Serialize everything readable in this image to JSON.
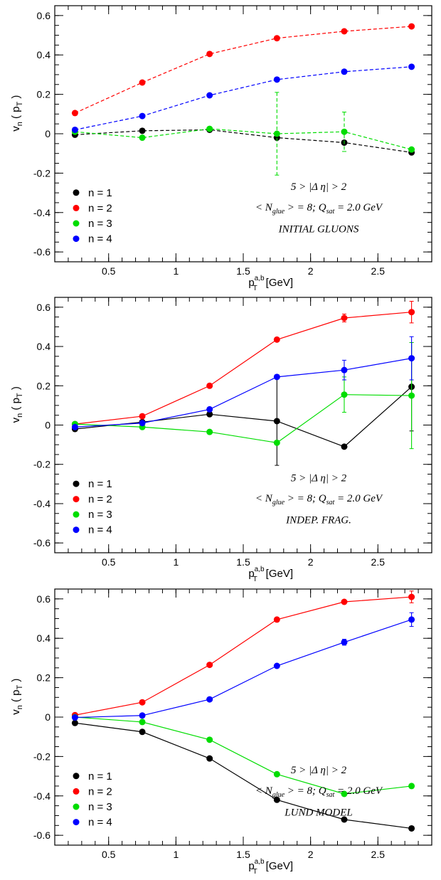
{
  "chart_data": [
    {
      "type": "line",
      "line_style": "dashed",
      "x": [
        0.25,
        0.75,
        1.25,
        1.75,
        2.25,
        2.75
      ],
      "xlim": [
        0.1,
        2.9
      ],
      "ylim": [
        -0.65,
        0.65
      ],
      "xticks": [
        "0.5",
        "1",
        "1.5",
        "2",
        "2.5"
      ],
      "yticks": [
        "-0.6",
        "-0.4",
        "-0.2",
        "0",
        "0.2",
        "0.4",
        "0.6"
      ],
      "xlabel": "p_T^{a,b} [GeV]",
      "ylabel": "v_n ( p_T )",
      "series": [
        {
          "name": "n = 1",
          "color": "#000000",
          "values": [
            -0.005,
            0.015,
            0.02,
            -0.02,
            -0.045,
            -0.095
          ],
          "errors": [
            0,
            0,
            0,
            0,
            0,
            0
          ]
        },
        {
          "name": "n = 2",
          "color": "#ff0000",
          "values": [
            0.105,
            0.26,
            0.405,
            0.485,
            0.52,
            0.545
          ],
          "errors": [
            0,
            0,
            0,
            0,
            0,
            0
          ]
        },
        {
          "name": "n = 3",
          "color": "#00dd00",
          "values": [
            0.01,
            -0.02,
            0.025,
            0.0,
            0.01,
            -0.08
          ],
          "errors": [
            0,
            0,
            0,
            0.21,
            0.1,
            0
          ]
        },
        {
          "name": "n = 4",
          "color": "#0000ff",
          "values": [
            0.02,
            0.09,
            0.195,
            0.275,
            0.315,
            0.34
          ],
          "errors": [
            0,
            0,
            0,
            0,
            0,
            0
          ]
        }
      ],
      "annotations": [
        "5 > |Δ η| > 2",
        "< N_glue > = 8;  Q_sat = 2.0 GeV",
        "INITIAL GLUONS"
      ]
    },
    {
      "type": "line",
      "line_style": "solid",
      "x": [
        0.25,
        0.75,
        1.25,
        1.75,
        2.25,
        2.75
      ],
      "xlim": [
        0.1,
        2.9
      ],
      "ylim": [
        -0.65,
        0.65
      ],
      "xticks": [
        "0.5",
        "1",
        "1.5",
        "2",
        "2.5"
      ],
      "yticks": [
        "-0.6",
        "-0.4",
        "-0.2",
        "0",
        "0.2",
        "0.4",
        "0.6"
      ],
      "xlabel": "p_T^{a,b} [GeV]",
      "ylabel": "v_n ( p_T )",
      "series": [
        {
          "name": "n = 1",
          "color": "#000000",
          "values": [
            -0.02,
            0.015,
            0.055,
            0.02,
            -0.11,
            0.195
          ],
          "errors": [
            0,
            0,
            0,
            0.225,
            0,
            0.225
          ]
        },
        {
          "name": "n = 2",
          "color": "#ff0000",
          "values": [
            0.005,
            0.045,
            0.2,
            0.435,
            0.545,
            0.575
          ],
          "errors": [
            0,
            0,
            0,
            0,
            0.02,
            0.055
          ]
        },
        {
          "name": "n = 3",
          "color": "#00dd00",
          "values": [
            0.005,
            -0.01,
            -0.035,
            -0.09,
            0.155,
            0.15
          ],
          "errors": [
            0,
            0,
            0,
            0,
            0.09,
            0.27
          ]
        },
        {
          "name": "n = 4",
          "color": "#0000ff",
          "values": [
            -0.01,
            0.01,
            0.08,
            0.245,
            0.28,
            0.34
          ],
          "errors": [
            0,
            0,
            0,
            0,
            0.05,
            0.11
          ]
        }
      ],
      "annotations": [
        "5 > |Δ η| > 2",
        "< N_glue > = 8;  Q_sat = 2.0 GeV",
        "INDEP. FRAG."
      ]
    },
    {
      "type": "line",
      "line_style": "solid",
      "x": [
        0.25,
        0.75,
        1.25,
        1.75,
        2.25,
        2.75
      ],
      "xlim": [
        0.1,
        2.9
      ],
      "ylim": [
        -0.65,
        0.65
      ],
      "xticks": [
        "0.5",
        "1",
        "1.5",
        "2",
        "2.5"
      ],
      "yticks": [
        "-0.6",
        "-0.4",
        "-0.2",
        "0",
        "0.2",
        "0.4",
        "0.6"
      ],
      "xlabel": "p_T^{a,b} [GeV]",
      "ylabel": "v_n ( p_T )",
      "series": [
        {
          "name": "n = 1",
          "color": "#000000",
          "values": [
            -0.03,
            -0.075,
            -0.21,
            -0.42,
            -0.52,
            -0.565
          ],
          "errors": [
            0,
            0,
            0,
            0,
            0,
            0
          ]
        },
        {
          "name": "n = 2",
          "color": "#ff0000",
          "values": [
            0.01,
            0.075,
            0.265,
            0.495,
            0.585,
            0.61
          ],
          "errors": [
            0,
            0,
            0,
            0,
            0,
            0.03
          ]
        },
        {
          "name": "n = 3",
          "color": "#00dd00",
          "values": [
            0.0,
            -0.025,
            -0.115,
            -0.29,
            -0.39,
            -0.35
          ],
          "errors": [
            0,
            0,
            0,
            0,
            0,
            0
          ]
        },
        {
          "name": "n = 4",
          "color": "#0000ff",
          "values": [
            -0.002,
            0.008,
            0.09,
            0.26,
            0.38,
            0.495
          ],
          "errors": [
            0,
            0,
            0,
            0,
            0.015,
            0.035
          ]
        }
      ],
      "annotations": [
        "5 > |Δ η| > 2",
        "< N_glue > = 8;  Q_sat = 2.0 GeV",
        "LUND MODEL"
      ]
    }
  ]
}
